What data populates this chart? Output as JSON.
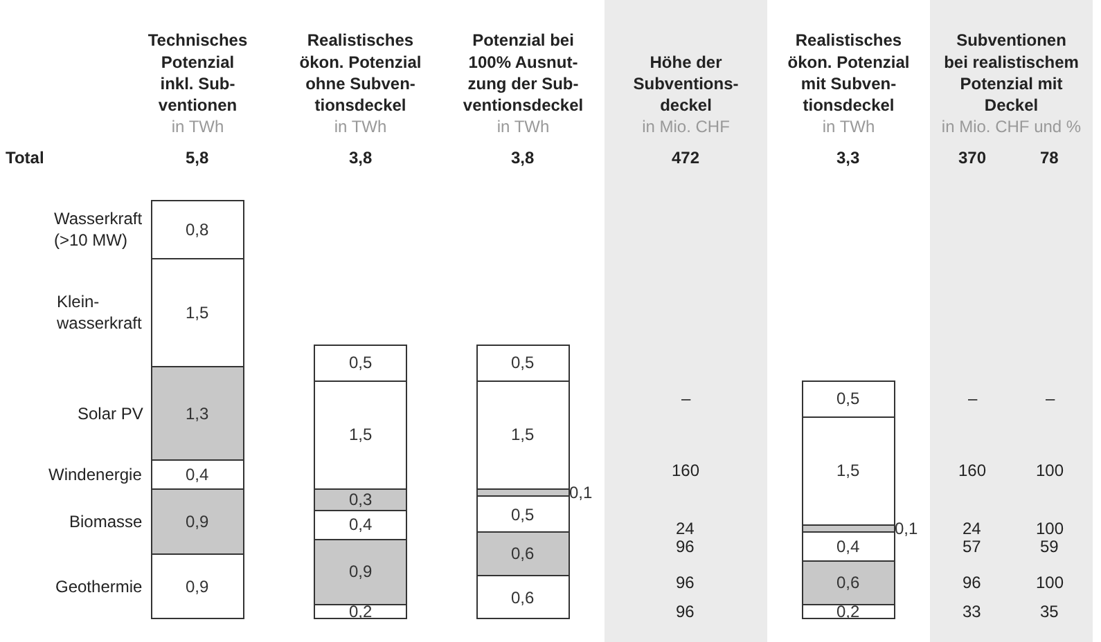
{
  "chart_data": {
    "type": "bar",
    "stacked": true,
    "categories": [
      "Technisches\nPotenzial\ninkl. Sub-\nventionen\nin TWh",
      "Realistisches\nökon. Potenzial\nohne Subven-\ntionsdeckel\nin TWh",
      "Potenzial bei\n100% Ausnut-\nzung der Sub-\nventionsdeckel\nin TWh",
      "Höhe der\nSubventions-\ndeckel\nin Mio. CHF",
      "Realistisches\nökon. Potenzial\nmit Subven-\ntionsdeckel\nin TWh",
      "Subventionen\nbei realistischem\nPotenzial mit\nDeckel\nin Mio. CHF und %"
    ],
    "series": [
      {
        "name": "Geothermie",
        "color": "#ffffff",
        "values": [
          0.9,
          0.2,
          0.6,
          null,
          0.2,
          null
        ],
        "value_labels": [
          "0,9",
          "0,2",
          "0,6",
          null,
          "0,2",
          null
        ]
      },
      {
        "name": "Biomasse",
        "color": "#c8c8c8",
        "values": [
          0.9,
          0.9,
          0.6,
          null,
          0.6,
          null
        ],
        "value_labels": [
          "0,9",
          "0,9",
          "0,6",
          null,
          "0,6",
          null
        ]
      },
      {
        "name": "Windenergie",
        "color": "#ffffff",
        "values": [
          0.4,
          0.4,
          0.5,
          null,
          0.4,
          null
        ],
        "value_labels": [
          "0,4",
          "0,4",
          "0,5",
          null,
          "0,4",
          null
        ]
      },
      {
        "name": "Solar PV",
        "color": "#c8c8c8",
        "values": [
          1.3,
          0.3,
          0.1,
          null,
          0.1,
          null
        ],
        "value_labels": [
          "1,3",
          "0,3",
          "0,1",
          null,
          "0,1",
          null
        ]
      },
      {
        "name": "Klein-\nwasserkraft",
        "color": "#ffffff",
        "values": [
          1.5,
          1.5,
          1.5,
          null,
          1.5,
          null
        ],
        "value_labels": [
          "1,5",
          "1,5",
          "1,5",
          null,
          "1,5",
          null
        ]
      },
      {
        "name": "Wasserkraft\n(>10 MW)",
        "color": "#ffffff",
        "values": [
          0.8,
          0.5,
          0.5,
          null,
          0.5,
          null
        ],
        "value_labels": [
          "0,8",
          "0,5",
          "0,5",
          null,
          "0,5",
          null
        ]
      }
    ],
    "tick_labels": "x",
    "bands": [
      {
        "axis": "x",
        "from": "Höhe der\nSubventions-\ndeckel\nin Mio. CHF",
        "to": "Höhe der\nSubventions-\ndeckel\nin Mio. CHF",
        "color": "#ebebeb"
      },
      {
        "axis": "x",
        "from": "Subventionen\nbei realistischem\nPotenzial mit\nDeckel\nin Mio. CHF und %",
        "to": "Subventionen\nbei realistischem\nPotenzial mit\nDeckel\nin Mio. CHF und %",
        "color": "#ebebeb"
      }
    ],
    "annotations": [
      "Total",
      "5,8",
      "3,8",
      "3,8",
      "472",
      "3,3",
      "370",
      "78",
      "–",
      "160",
      "24",
      "96",
      "96",
      "96",
      "–",
      "–",
      "160",
      "100",
      "24",
      "100",
      "57",
      "59",
      "96",
      "100",
      "33",
      "35"
    ]
  }
}
